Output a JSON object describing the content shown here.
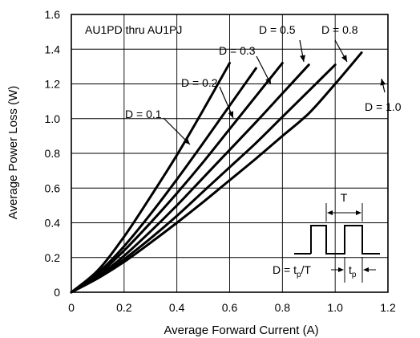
{
  "chart_data": {
    "type": "line",
    "title": "AU1PD thru AU1PJ",
    "xlabel": "Average Forward Current (A)",
    "ylabel": "Average Power Loss (W)",
    "xlim": [
      0,
      1.2
    ],
    "ylim": [
      0,
      1.6
    ],
    "x_ticks": [
      0,
      0.2,
      0.4,
      0.6,
      0.8,
      1.0,
      1.2
    ],
    "x_tick_labels": [
      "0",
      "0.2",
      "0.4",
      "0.6",
      "0.8",
      "1.0",
      "1.2"
    ],
    "y_ticks": [
      0,
      0.2,
      0.4,
      0.6,
      0.8,
      1.0,
      1.2,
      1.4,
      1.6
    ],
    "y_tick_labels": [
      "0",
      "0.2",
      "0.4",
      "0.6",
      "0.8",
      "1.0",
      "1.2",
      "1.4",
      "1.6"
    ],
    "grid": true,
    "series": [
      {
        "name": "D = 0.1",
        "x": [
          0,
          0.1,
          0.2,
          0.3,
          0.4,
          0.5,
          0.6
        ],
        "y": [
          0,
          0.125,
          0.32,
          0.55,
          0.79,
          1.05,
          1.32
        ]
      },
      {
        "name": "D = 0.2",
        "x": [
          0,
          0.1,
          0.2,
          0.3,
          0.4,
          0.5,
          0.6,
          0.7
        ],
        "y": [
          0,
          0.11,
          0.265,
          0.45,
          0.65,
          0.86,
          1.075,
          1.29
        ]
      },
      {
        "name": "D = 0.3",
        "x": [
          0,
          0.1,
          0.2,
          0.3,
          0.4,
          0.5,
          0.6,
          0.7,
          0.8
        ],
        "y": [
          0,
          0.1,
          0.24,
          0.4,
          0.57,
          0.75,
          0.94,
          1.13,
          1.32
        ]
      },
      {
        "name": "D = 0.5",
        "x": [
          0,
          0.1,
          0.2,
          0.3,
          0.4,
          0.5,
          0.6,
          0.7,
          0.8,
          0.9
        ],
        "y": [
          0,
          0.09,
          0.21,
          0.35,
          0.5,
          0.66,
          0.82,
          0.98,
          1.145,
          1.31
        ]
      },
      {
        "name": "D = 0.8",
        "x": [
          0,
          0.1,
          0.2,
          0.3,
          0.4,
          0.5,
          0.6,
          0.7,
          0.8,
          0.9,
          1.0
        ],
        "y": [
          0,
          0.085,
          0.19,
          0.31,
          0.44,
          0.58,
          0.72,
          0.86,
          1.01,
          1.16,
          1.31
        ]
      },
      {
        "name": "D = 1.0",
        "x": [
          0,
          0.1,
          0.2,
          0.3,
          0.4,
          0.5,
          0.6,
          0.7,
          0.8,
          0.9,
          1.0,
          1.1
        ],
        "y": [
          0,
          0.08,
          0.175,
          0.285,
          0.4,
          0.52,
          0.645,
          0.77,
          0.9,
          1.03,
          1.2,
          1.38
        ]
      }
    ],
    "annotations": {
      "duty_formula_prefix": "D = t",
      "duty_formula_sub": "p",
      "duty_formula_suffix": "/T",
      "period_label": "T",
      "pulse_label": "t",
      "pulse_label_sub": "p"
    }
  },
  "colors": {
    "curve": "#000000",
    "grid": "#000000",
    "background": "#ffffff"
  }
}
